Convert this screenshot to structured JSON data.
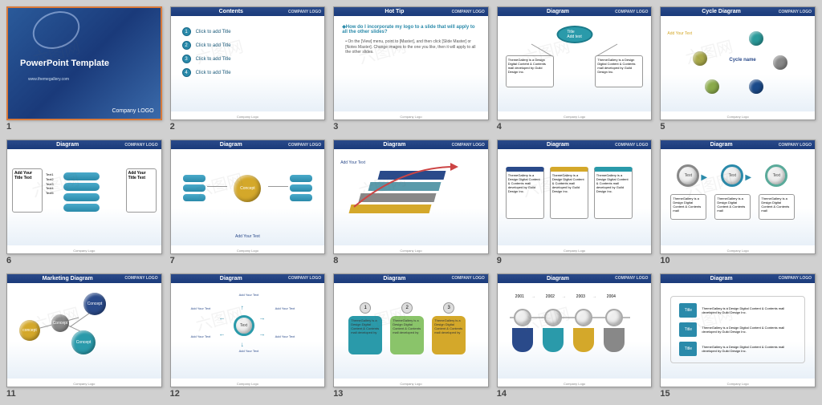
{
  "company_logo_text": "COMPANY LOGO",
  "footer_text": "Company Logo",
  "slides": [
    {
      "n": 1,
      "type": "title",
      "title": "PowerPoint Template",
      "subtitle": "www.themegallery.com",
      "bottom_logo": "Company LOGO",
      "bg": "#2a5a9a"
    },
    {
      "n": 2,
      "type": "contents",
      "title": "Contents",
      "items": [
        "Click to add Title",
        "Click to add Title",
        "Click to add Title",
        "Click to add Title"
      ]
    },
    {
      "n": 3,
      "type": "hottip",
      "title": "Hot Tip",
      "question": "How do I incorporate my logo to a slide that will apply to all the other slides?",
      "body": "On the [View] menu, point to [Master], and then click [Slide Master] or [Notes Master]. Change images to the one you like, then it will apply to all the other slides."
    },
    {
      "n": 4,
      "type": "diagram_oval",
      "title": "Diagram",
      "oval_label": "Title\\nAdd text",
      "oval_color": "#2a9aaa",
      "boxes": [
        "ThemeGallery is a Design Digital Content & Contents mall developed by Guild Design Inc.",
        "ThemeGallery is a Design Digital Content & Contents mall developed by Guild Design Inc."
      ]
    },
    {
      "n": 5,
      "type": "cycle",
      "title": "Cycle Diagram",
      "center": "Cycle name",
      "add": "Add Your Text",
      "spheres": [
        {
          "c": "#2a9a9a"
        },
        {
          "c": "#888888"
        },
        {
          "c": "#1a4a8a"
        },
        {
          "c": "#8aaa4a"
        },
        {
          "c": "#aaaa4a"
        }
      ]
    },
    {
      "n": 6,
      "type": "cylinders",
      "title": "Diagram",
      "left": "Add Your Title Text",
      "items": [
        "Text1",
        "Text2",
        "Text3",
        "Text4",
        "Text5"
      ],
      "right": "Add Your Title Text"
    },
    {
      "n": 7,
      "type": "concept_cyl",
      "title": "Diagram",
      "center": "Concept",
      "center_color": "#d4a82a",
      "cyl_color": "#2a8aaa",
      "bottom": "Add Your Text"
    },
    {
      "n": 8,
      "type": "steps",
      "title": "Diagram",
      "add": "Add Your Text",
      "bars": [
        {
          "c": "#d4a82a"
        },
        {
          "c": "#888"
        },
        {
          "c": "#5a9aaa"
        },
        {
          "c": "#2a4a8a"
        }
      ]
    },
    {
      "n": 9,
      "type": "three_box",
      "title": "Diagram",
      "boxes": [
        {
          "c": "#2a4a8a",
          "t": "ThemeGallery is a Design Digital Content & Contents mall developed by Guild Design Inc."
        },
        {
          "c": "#d4a82a",
          "t": "ThemeGallery is a Design Digital Content & Contents mall developed by Guild Design Inc."
        },
        {
          "c": "#2a9aaa",
          "t": "ThemeGallery is a Design Digital Content & Contents mall developed by Guild Design Inc."
        }
      ]
    },
    {
      "n": 10,
      "type": "three_circle",
      "title": "Diagram",
      "circles": [
        {
          "c": "#888",
          "t": "Text"
        },
        {
          "c": "#2a8aaa",
          "t": "Text"
        },
        {
          "c": "#5aaa9a",
          "t": "Text"
        }
      ],
      "caps": [
        "ThemeGallery is a Design Digital Content & Contents mall",
        "ThemeGallery is a Design Digital Content & Contents mall",
        "ThemeGallery is a Design Digital Content & Contents mall"
      ]
    },
    {
      "n": 11,
      "type": "marketing",
      "title": "Marketing Diagram",
      "spheres": [
        {
          "c": "#2a4a8a",
          "t": "Concept"
        },
        {
          "c": "#888",
          "t": "Concept"
        },
        {
          "c": "#d4a82a",
          "t": "concept"
        },
        {
          "c": "#2a9aaa",
          "t": "Concept"
        }
      ]
    },
    {
      "n": 12,
      "type": "hub",
      "title": "Diagram",
      "center": "Text",
      "center_color": "#2a9aaa",
      "labels": [
        "Add Your Text",
        "Add Your Text",
        "Add Your Text",
        "Add Your Text",
        "Add Your Text",
        "Add Your Text"
      ]
    },
    {
      "n": 13,
      "type": "three_round",
      "title": "Diagram",
      "cards": [
        {
          "c": "#2a9aaa",
          "n": "1",
          "t": "ThemeGallery is a Design Digital Content & Contents mall developed by"
        },
        {
          "c": "#8ac46a",
          "n": "2",
          "t": "ThemeGallery is a Design Digital Content & Contents mall developed by"
        },
        {
          "c": "#d4a82a",
          "n": "3",
          "t": "ThemeGallery is a Design Digital Content & Contents mall developed by"
        }
      ]
    },
    {
      "n": 14,
      "type": "timeline",
      "title": "Diagram",
      "years": [
        "2001",
        "2002",
        "2003",
        "2004"
      ],
      "discs": [
        {
          "c": "#2a4a8a"
        },
        {
          "c": "#2a9aaa"
        },
        {
          "c": "#d4a82a"
        },
        {
          "c": "#888"
        }
      ]
    },
    {
      "n": 15,
      "type": "legend",
      "title": "Diagram",
      "items": [
        {
          "c": "#2a8aaa",
          "t": "ThemeGallery is a Design Digital Content & Contents mall developed by Guild Design Inc."
        },
        {
          "c": "#2a8aaa",
          "t": "ThemeGallery is a Design Digital Content & Contents mall developed by Guild Design Inc."
        },
        {
          "c": "#2a8aaa",
          "t": "ThemeGallery is a Design Digital Content & Contents mall developed by Guild Design Inc."
        }
      ],
      "label": "Title"
    }
  ],
  "watermark": "六图网"
}
